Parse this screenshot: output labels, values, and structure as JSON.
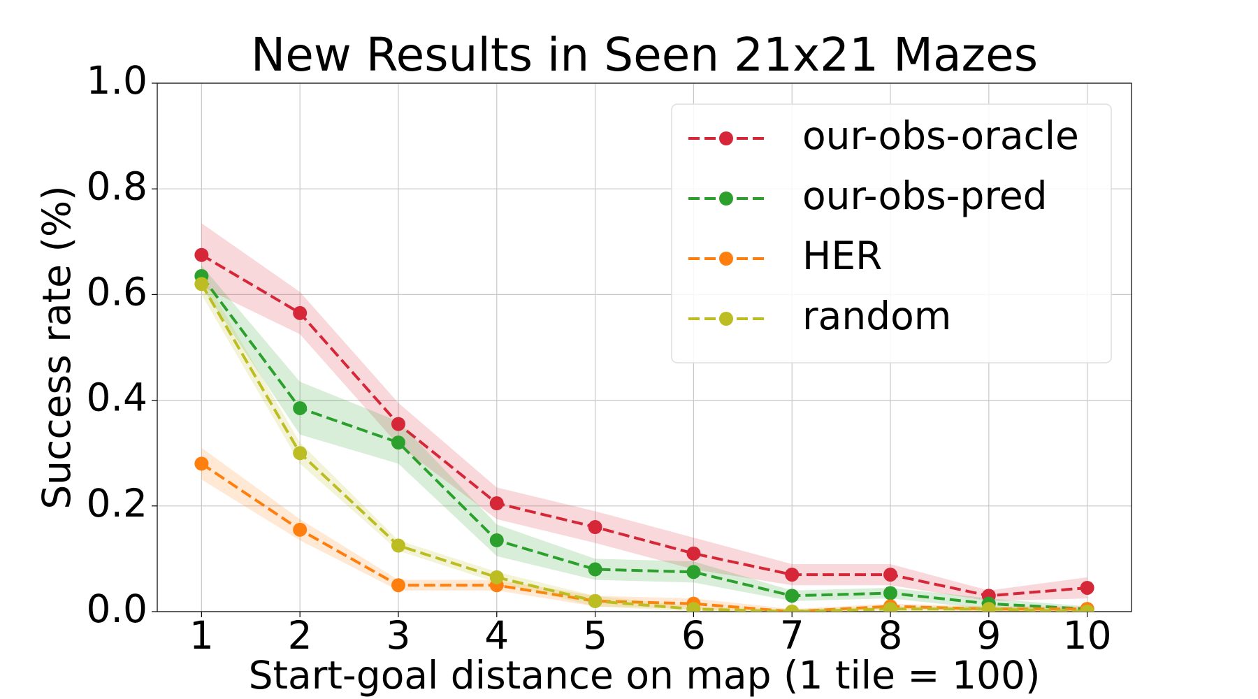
{
  "chart_data": {
    "type": "line",
    "title": "New Results in Seen 21x21 Mazes",
    "x_label": "Start-goal distance on map (1 tile = 100)",
    "y_label": "Success rate (%)",
    "x": [
      1,
      2,
      3,
      4,
      5,
      6,
      7,
      8,
      9,
      10
    ],
    "series": [
      {
        "name": "our-obs-oracle",
        "color": "#d62739",
        "values": [
          0.675,
          0.565,
          0.355,
          0.205,
          0.16,
          0.11,
          0.07,
          0.07,
          0.03,
          0.045
        ],
        "errors": [
          0.06,
          0.04,
          0.04,
          0.03,
          0.03,
          0.03,
          0.02,
          0.02,
          0.01,
          0.02
        ]
      },
      {
        "name": "our-obs-pred",
        "color": "#2ca02c",
        "values": [
          0.635,
          0.385,
          0.32,
          0.135,
          0.08,
          0.075,
          0.03,
          0.035,
          0.015,
          0.005
        ],
        "errors": [
          0.02,
          0.05,
          0.04,
          0.03,
          0.02,
          0.02,
          0.01,
          0.01,
          0.01,
          0.005
        ]
      },
      {
        "name": "HER",
        "color": "#ff7f0e",
        "values": [
          0.28,
          0.155,
          0.05,
          0.05,
          0.02,
          0.015,
          0.0,
          0.01,
          0.005,
          0.005
        ],
        "errors": [
          0.03,
          0.02,
          0.01,
          0.01,
          0.01,
          0.01,
          0.005,
          0.005,
          0.005,
          0.005
        ]
      },
      {
        "name": "random",
        "color": "#bcbd22",
        "values": [
          0.62,
          0.3,
          0.125,
          0.065,
          0.02,
          0.005,
          0.0,
          0.005,
          0.005,
          0.0
        ],
        "errors": [
          0.02,
          0.02,
          0.01,
          0.01,
          0.01,
          0.005,
          0.005,
          0.005,
          0.005,
          0.005
        ]
      }
    ],
    "xlim": [
      0.55,
      10.45
    ],
    "ylim": [
      0,
      1
    ],
    "xticks": [
      1,
      2,
      3,
      4,
      5,
      6,
      7,
      8,
      9,
      10
    ],
    "yticks": [
      {
        "value": 0,
        "label": "0.0"
      },
      {
        "value": 0.2,
        "label": "0.2"
      },
      {
        "value": 0.4,
        "label": "0.4"
      },
      {
        "value": 0.6,
        "label": "0.6"
      },
      {
        "value": 0.8,
        "label": "0.8"
      },
      {
        "value": 1,
        "label": "1.0"
      }
    ],
    "grid": true,
    "legend": "upper right"
  }
}
